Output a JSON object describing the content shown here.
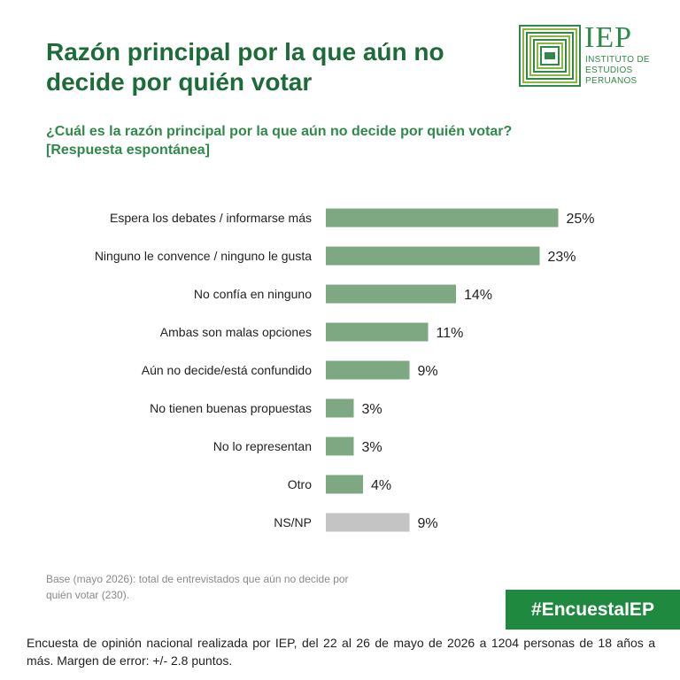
{
  "header": {
    "title": "Razón principal por la que aún no decide por quién votar",
    "subtitle": "¿Cuál es la razón principal por la que aún no decide por quién votar? [Respuesta espontánea]"
  },
  "logo": {
    "abbr": "IEP",
    "line1": "INSTITUTO DE",
    "line2": "ESTUDIOS",
    "line3": "PERUANOS"
  },
  "chart_data": {
    "type": "bar",
    "orientation": "horizontal",
    "categories": [
      "Espera los debates / informarse más",
      "Ninguno le convence / ninguno le gusta",
      "No confía en ninguno",
      "Ambas son malas opciones",
      "Aún no decide/está confundido",
      "No tienen buenas propuestas",
      "No lo representan",
      "Otro",
      "NS/NP"
    ],
    "values": [
      25,
      23,
      14,
      11,
      9,
      3,
      3,
      4,
      9
    ],
    "value_labels": [
      "25%",
      "23%",
      "14%",
      "11%",
      "9%",
      "3%",
      "3%",
      "4%",
      "9%"
    ],
    "unit": "%",
    "xlim": [
      0,
      30
    ],
    "grid": false,
    "legend": "none",
    "colors": {
      "default": "#7da882",
      "highlight_last": "#c4c4c4"
    }
  },
  "notes": {
    "base": "Base (mayo 2026): total de entrevistados que aún no decide por quién votar (230).",
    "hashtag": "#EncuestaIEP",
    "footer": "Encuesta de opinión nacional realizada por IEP, del 22 al 26 de mayo de 2026 a 1204 personas de 18 años a más. Margen de error: +/- 2.8 puntos."
  }
}
